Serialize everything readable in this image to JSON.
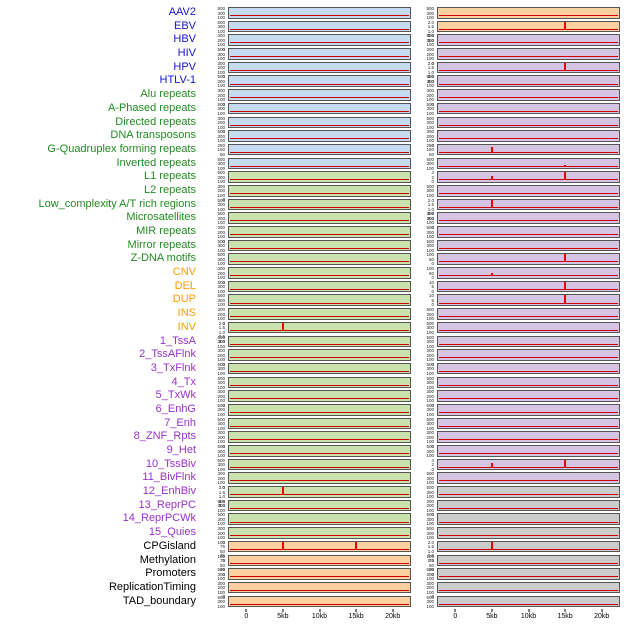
{
  "figure": {
    "background": "#ffffff"
  },
  "colors": {
    "label_blue": "#1515cd",
    "label_green": "#228b22",
    "label_orange": "#f5a000",
    "label_purple": "#9932cc",
    "label_black": "#000000",
    "bg_blue": "#c6dbef",
    "bg_green": "#c9e2ae",
    "bg_orange": "#fdd0a2",
    "bg_purple": "#d5c5e2",
    "bg_gray": "#cccccc",
    "line_red": "#cc0000",
    "spike_red": "#ee0000",
    "panel_border": "#555555"
  },
  "chart_data": {
    "type": "line",
    "panels_columns": 2,
    "x_axis": {
      "ticks": [
        "0",
        "5kb",
        "10kb",
        "15kb",
        "20kb"
      ],
      "range_kb": [
        0,
        20
      ]
    },
    "ytick_sets": {
      "c3": [
        "500",
        "300",
        "100"
      ],
      "c4": [
        "300",
        "200",
        "100",
        "0"
      ],
      "q3": [
        "250",
        "150",
        "50"
      ],
      "r5": [
        "2.0",
        "1.5",
        "1.0",
        "0.5",
        "0.0"
      ],
      "pct": [
        "100",
        "75",
        "50",
        "25",
        "0"
      ],
      "s3": [
        "4",
        "2",
        "0"
      ],
      "m3": [
        "10",
        "5",
        "0"
      ],
      "h3": [
        "100",
        "50",
        "0"
      ]
    },
    "rows": [
      {
        "label": "AAV2",
        "group": "blue",
        "left": {
          "bg": "blue",
          "yticks": "c3",
          "spikes": []
        },
        "right": {
          "bg": "orange",
          "yticks": "c3",
          "spikes": []
        }
      },
      {
        "label": "EBV",
        "group": "blue",
        "left": {
          "bg": "blue",
          "yticks": "c3",
          "spikes": []
        },
        "right": {
          "bg": "orange",
          "yticks": "r5",
          "spikes": [
            {
              "x": 15,
              "h": 0.88
            }
          ]
        }
      },
      {
        "label": "HBV",
        "group": "blue",
        "left": {
          "bg": "blue",
          "yticks": "c4",
          "spikes": []
        },
        "right": {
          "bg": "purple",
          "yticks": "c3",
          "spikes": []
        }
      },
      {
        "label": "HIV",
        "group": "blue",
        "left": {
          "bg": "blue",
          "yticks": "c3",
          "spikes": []
        },
        "right": {
          "bg": "purple",
          "yticks": "c4",
          "spikes": []
        }
      },
      {
        "label": "HPV",
        "group": "blue",
        "left": {
          "bg": "blue",
          "yticks": "c4",
          "spikes": []
        },
        "right": {
          "bg": "purple",
          "yticks": "r5",
          "spikes": [
            {
              "x": 15,
              "h": 0.85
            }
          ]
        }
      },
      {
        "label": "HTLV-1",
        "group": "blue",
        "left": {
          "bg": "blue",
          "yticks": "c3",
          "spikes": []
        },
        "right": {
          "bg": "purple",
          "yticks": "c3",
          "spikes": []
        }
      },
      {
        "label": "Alu repeats",
        "group": "green",
        "left": {
          "bg": "blue",
          "yticks": "c4",
          "spikes": []
        },
        "right": {
          "bg": "purple",
          "yticks": "c4",
          "spikes": []
        }
      },
      {
        "label": "A-Phased repeats",
        "group": "green",
        "left": {
          "bg": "blue",
          "yticks": "c3",
          "spikes": []
        },
        "right": {
          "bg": "purple",
          "yticks": "c3",
          "spikes": []
        }
      },
      {
        "label": "Directed repeats",
        "group": "green",
        "left": {
          "bg": "blue",
          "yticks": "c4",
          "spikes": []
        },
        "right": {
          "bg": "purple",
          "yticks": "c3",
          "spikes": []
        }
      },
      {
        "label": "DNA transposons",
        "group": "green",
        "left": {
          "bg": "blue",
          "yticks": "c3",
          "spikes": []
        },
        "right": {
          "bg": "purple",
          "yticks": "c4",
          "spikes": []
        }
      },
      {
        "label": "G-Quadruplex forming repeats",
        "group": "green",
        "left": {
          "bg": "blue",
          "yticks": "q3",
          "spikes": []
        },
        "right": {
          "bg": "purple",
          "yticks": "q3",
          "spikes": [
            {
              "x": 5,
              "h": 0.6
            }
          ]
        }
      },
      {
        "label": "Inverted repeats",
        "group": "green",
        "left": {
          "bg": "blue",
          "yticks": "c3",
          "spikes": []
        },
        "right": {
          "bg": "purple",
          "yticks": "c3",
          "spikes": [
            {
              "x": 15,
              "h": 0.22
            }
          ]
        }
      },
      {
        "label": "L1 repeats",
        "group": "green",
        "left": {
          "bg": "green",
          "yticks": "c3",
          "spikes": []
        },
        "right": {
          "bg": "purple",
          "yticks": "s3",
          "spikes": [
            {
              "x": 5,
              "h": 0.45
            },
            {
              "x": 15,
              "h": 0.92
            }
          ]
        }
      },
      {
        "label": "L2 repeats",
        "group": "green",
        "left": {
          "bg": "green",
          "yticks": "c4",
          "spikes": []
        },
        "right": {
          "bg": "purple",
          "yticks": "c3",
          "spikes": []
        }
      },
      {
        "label": "Low_complexity A/T rich regions",
        "group": "green",
        "left": {
          "bg": "green",
          "yticks": "c3",
          "spikes": []
        },
        "right": {
          "bg": "purple",
          "yticks": "r5",
          "spikes": [
            {
              "x": 5,
              "h": 0.88
            }
          ]
        }
      },
      {
        "label": "Microsatellites",
        "group": "green",
        "left": {
          "bg": "green",
          "yticks": "c3",
          "spikes": []
        },
        "right": {
          "bg": "purple",
          "yticks": "c4",
          "spikes": []
        }
      },
      {
        "label": "MIR repeats",
        "group": "green",
        "left": {
          "bg": "green",
          "yticks": "c4",
          "spikes": []
        },
        "right": {
          "bg": "purple",
          "yticks": "c3",
          "spikes": []
        }
      },
      {
        "label": "Mirror repeats",
        "group": "green",
        "left": {
          "bg": "green",
          "yticks": "c3",
          "spikes": []
        },
        "right": {
          "bg": "purple",
          "yticks": "c3",
          "spikes": []
        }
      },
      {
        "label": "Z-DNA motifs",
        "group": "green",
        "left": {
          "bg": "green",
          "yticks": "c3",
          "spikes": []
        },
        "right": {
          "bg": "purple",
          "yticks": "h3",
          "spikes": [
            {
              "x": 15,
              "h": 0.9
            }
          ]
        }
      },
      {
        "label": "CNV",
        "group": "orange",
        "left": {
          "bg": "green",
          "yticks": "c4",
          "spikes": []
        },
        "right": {
          "bg": "purple",
          "yticks": "h3",
          "spikes": [
            {
              "x": 5,
              "h": 0.3
            }
          ]
        }
      },
      {
        "label": "DEL",
        "group": "orange",
        "left": {
          "bg": "green",
          "yticks": "c3",
          "spikes": []
        },
        "right": {
          "bg": "purple",
          "yticks": "m3",
          "spikes": [
            {
              "x": 15,
              "h": 0.8
            }
          ]
        }
      },
      {
        "label": "DUP",
        "group": "orange",
        "left": {
          "bg": "green",
          "yticks": "c3",
          "spikes": []
        },
        "right": {
          "bg": "purple",
          "yticks": "m3",
          "spikes": [
            {
              "x": 15,
              "h": 0.85
            }
          ]
        }
      },
      {
        "label": "INS",
        "group": "orange",
        "left": {
          "bg": "green",
          "yticks": "c4",
          "spikes": []
        },
        "right": {
          "bg": "purple",
          "yticks": "c3",
          "spikes": []
        }
      },
      {
        "label": "INV",
        "group": "orange",
        "left": {
          "bg": "green",
          "yticks": "r5",
          "spikes": [
            {
              "x": 5,
              "h": 0.85
            }
          ]
        },
        "right": {
          "bg": "purple",
          "yticks": "c3",
          "spikes": []
        }
      },
      {
        "label": "1_TssA",
        "group": "purple",
        "left": {
          "bg": "green",
          "yticks": "c3",
          "spikes": []
        },
        "right": {
          "bg": "purple",
          "yticks": "c3",
          "spikes": []
        }
      },
      {
        "label": "2_TssAFlnk",
        "group": "purple",
        "left": {
          "bg": "green",
          "yticks": "c4",
          "spikes": []
        },
        "right": {
          "bg": "purple",
          "yticks": "c4",
          "spikes": []
        }
      },
      {
        "label": "3_TxFlnk",
        "group": "purple",
        "left": {
          "bg": "green",
          "yticks": "c3",
          "spikes": []
        },
        "right": {
          "bg": "purple",
          "yticks": "c3",
          "spikes": []
        }
      },
      {
        "label": "4_Tx",
        "group": "purple",
        "left": {
          "bg": "green",
          "yticks": "c3",
          "spikes": []
        },
        "right": {
          "bg": "purple",
          "yticks": "c3",
          "spikes": []
        }
      },
      {
        "label": "5_TxWk",
        "group": "purple",
        "left": {
          "bg": "green",
          "yticks": "c4",
          "spikes": []
        },
        "right": {
          "bg": "purple",
          "yticks": "c4",
          "spikes": []
        }
      },
      {
        "label": "6_EnhG",
        "group": "purple",
        "left": {
          "bg": "green",
          "yticks": "c3",
          "spikes": []
        },
        "right": {
          "bg": "purple",
          "yticks": "c3",
          "spikes": []
        }
      },
      {
        "label": "7_Enh",
        "group": "purple",
        "left": {
          "bg": "green",
          "yticks": "c3",
          "spikes": []
        },
        "right": {
          "bg": "purple",
          "yticks": "c3",
          "spikes": []
        }
      },
      {
        "label": "8_ZNF_Rpts",
        "group": "purple",
        "left": {
          "bg": "green",
          "yticks": "c4",
          "spikes": []
        },
        "right": {
          "bg": "purple",
          "yticks": "c4",
          "spikes": []
        }
      },
      {
        "label": "9_Het",
        "group": "purple",
        "left": {
          "bg": "green",
          "yticks": "c3",
          "spikes": []
        },
        "right": {
          "bg": "purple",
          "yticks": "c3",
          "spikes": []
        }
      },
      {
        "label": "10_TssBiv",
        "group": "purple",
        "left": {
          "bg": "green",
          "yticks": "c3",
          "spikes": []
        },
        "right": {
          "bg": "purple",
          "yticks": "s3",
          "spikes": [
            {
              "x": 5,
              "h": 0.5
            },
            {
              "x": 15,
              "h": 0.9
            }
          ]
        }
      },
      {
        "label": "11_BivFlnk",
        "group": "purple",
        "left": {
          "bg": "green",
          "yticks": "c4",
          "spikes": []
        },
        "right": {
          "bg": "purple",
          "yticks": "c3",
          "spikes": []
        }
      },
      {
        "label": "12_EnhBiv",
        "group": "purple",
        "left": {
          "bg": "green",
          "yticks": "r5",
          "spikes": [
            {
              "x": 5,
              "h": 0.85
            }
          ]
        },
        "right": {
          "bg": "gray",
          "yticks": "c3",
          "spikes": []
        }
      },
      {
        "label": "13_ReprPC",
        "group": "purple",
        "left": {
          "bg": "green",
          "yticks": "c3",
          "spikes": []
        },
        "right": {
          "bg": "gray",
          "yticks": "c4",
          "spikes": []
        }
      },
      {
        "label": "14_ReprPCWk",
        "group": "purple",
        "left": {
          "bg": "green",
          "yticks": "c3",
          "spikes": []
        },
        "right": {
          "bg": "gray",
          "yticks": "c3",
          "spikes": []
        }
      },
      {
        "label": "15_Quies",
        "group": "purple",
        "left": {
          "bg": "green",
          "yticks": "c4",
          "spikes": []
        },
        "right": {
          "bg": "gray",
          "yticks": "c3",
          "spikes": []
        }
      },
      {
        "label": "CPGisland",
        "group": "black",
        "left": {
          "bg": "orange",
          "yticks": "pct",
          "spikes": [
            {
              "x": 5,
              "h": 0.9
            },
            {
              "x": 15,
              "h": 0.85
            }
          ]
        },
        "right": {
          "bg": "gray",
          "yticks": "r5",
          "spikes": [
            {
              "x": 5,
              "h": 0.8
            }
          ]
        }
      },
      {
        "label": "Methylation",
        "group": "black",
        "left": {
          "bg": "orange",
          "yticks": "pct",
          "spikes": []
        },
        "right": {
          "bg": "gray",
          "yticks": "pct",
          "spikes": []
        }
      },
      {
        "label": "Promoters",
        "group": "black",
        "left": {
          "bg": "orange",
          "yticks": "c3",
          "spikes": []
        },
        "right": {
          "bg": "gray",
          "yticks": "c3",
          "spikes": []
        }
      },
      {
        "label": "ReplicationTiming",
        "group": "black",
        "left": {
          "bg": "orange",
          "yticks": "c4",
          "spikes": []
        },
        "right": {
          "bg": "gray",
          "yticks": "c4",
          "spikes": []
        }
      },
      {
        "label": "TAD_boundary",
        "group": "black",
        "left": {
          "bg": "orange",
          "yticks": "c3",
          "spikes": []
        },
        "right": {
          "bg": "gray",
          "yticks": "c3",
          "spikes": []
        }
      }
    ]
  }
}
